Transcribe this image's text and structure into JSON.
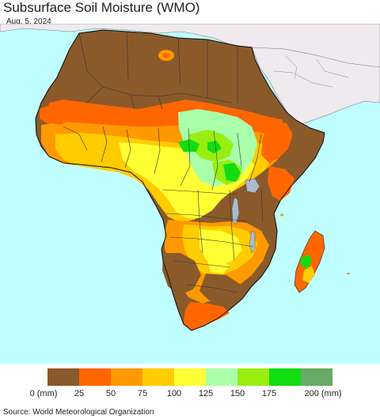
{
  "title": "Subsurface Soil Moisture (WMO)",
  "date": "Aug. 5, 2024",
  "legend": {
    "colors": [
      "#8B5A2B",
      "#FF6600",
      "#FF9900",
      "#FFCC00",
      "#FFFF33",
      "#AAFFAA",
      "#99EE11",
      "#11DD11",
      "#66AA66"
    ],
    "labels": [
      "0 (mm)",
      "25",
      "50",
      "75",
      "100",
      "125",
      "150",
      "175",
      "200 (mm)"
    ]
  },
  "source": "Source: World Meteorological Organization",
  "map_colors": {
    "ocean": "#BFFFFF",
    "other_land": "#EEEAEE",
    "dry": "#8B5A2B",
    "orange": "#FF6600",
    "light_orange": "#FF9900",
    "gold": "#FFCC00",
    "yellow": "#FFFF33",
    "pale_green": "#AAFFAA",
    "lime": "#99EE11",
    "green": "#11DD11",
    "lake": "#AABBCC"
  }
}
